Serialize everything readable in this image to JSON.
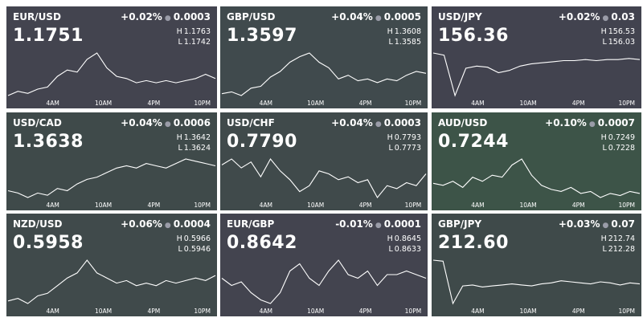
{
  "time_labels": [
    "4AM",
    "10AM",
    "4PM",
    "10PM"
  ],
  "high_label": "H",
  "low_label": "L",
  "tiles": [
    {
      "pair": "EUR/USD",
      "price": "1.1751",
      "change_pct": "+0.02%",
      "change": "0.0003",
      "high": "1.1763",
      "low": "1.1742",
      "color": "#43444f",
      "values": [
        1.1743,
        1.1745,
        1.1744,
        1.1746,
        1.1747,
        1.1752,
        1.1755,
        1.1754,
        1.176,
        1.1763,
        1.1756,
        1.1752,
        1.1751,
        1.1749,
        1.175,
        1.1749,
        1.175,
        1.1749,
        1.175,
        1.1751,
        1.1753,
        1.1751
      ]
    },
    {
      "pair": "GBP/USD",
      "price": "1.3597",
      "change_pct": "+0.04%",
      "change": "0.0005",
      "high": "1.3608",
      "low": "1.3585",
      "color": "#404a4d",
      "values": [
        1.3586,
        1.3587,
        1.3585,
        1.3589,
        1.359,
        1.3595,
        1.3598,
        1.3603,
        1.3606,
        1.3608,
        1.3603,
        1.36,
        1.3594,
        1.3596,
        1.3593,
        1.3594,
        1.3592,
        1.3594,
        1.3593,
        1.3596,
        1.3598,
        1.3597
      ]
    },
    {
      "pair": "USD/JPY",
      "price": "156.36",
      "change_pct": "+0.02%",
      "change": "0.03",
      "high": "156.53",
      "low": "156.03",
      "color": "#42434f",
      "values": [
        156.42,
        156.4,
        156.03,
        156.28,
        156.3,
        156.29,
        156.24,
        156.26,
        156.3,
        156.32,
        156.33,
        156.34,
        156.35,
        156.35,
        156.36,
        156.35,
        156.36,
        156.36,
        156.37,
        156.36
      ]
    },
    {
      "pair": "USD/CAD",
      "price": "1.3638",
      "change_pct": "+0.04%",
      "change": "0.0006",
      "high": "1.3642",
      "low": "1.3624",
      "color": "#3f4a4a",
      "values": [
        1.3627,
        1.3626,
        1.3624,
        1.3626,
        1.3625,
        1.3628,
        1.3627,
        1.363,
        1.3632,
        1.3633,
        1.3635,
        1.3637,
        1.3638,
        1.3637,
        1.3639,
        1.3638,
        1.3637,
        1.3639,
        1.3641,
        1.364,
        1.3639,
        1.3638
      ]
    },
    {
      "pair": "USD/CHF",
      "price": "0.7790",
      "change_pct": "+0.04%",
      "change": "0.0003",
      "high": "0.7793",
      "low": "0.7773",
      "color": "#404a4b",
      "values": [
        0.7785,
        0.7787,
        0.7784,
        0.7786,
        0.7781,
        0.7787,
        0.7783,
        0.778,
        0.7776,
        0.7778,
        0.7783,
        0.7782,
        0.778,
        0.7781,
        0.7779,
        0.778,
        0.7774,
        0.7778,
        0.7777,
        0.7779,
        0.7778,
        0.7782
      ]
    },
    {
      "pair": "AUD/USD",
      "price": "0.7244",
      "change_pct": "+0.10%",
      "change": "0.0007",
      "high": "0.7249",
      "low": "0.7228",
      "color": "#3d5448",
      "values": [
        0.7237,
        0.7236,
        0.7238,
        0.7235,
        0.724,
        0.7238,
        0.7241,
        0.724,
        0.7246,
        0.7249,
        0.7241,
        0.7236,
        0.7234,
        0.7233,
        0.7235,
        0.7232,
        0.7233,
        0.723,
        0.7232,
        0.7231,
        0.7233,
        0.7232
      ]
    },
    {
      "pair": "NZD/USD",
      "price": "0.5958",
      "change_pct": "+0.06%",
      "change": "0.0004",
      "high": "0.5966",
      "low": "0.5946",
      "color": "#404a4b",
      "values": [
        0.5947,
        0.5948,
        0.5946,
        0.5949,
        0.595,
        0.5953,
        0.5956,
        0.5958,
        0.5963,
        0.5958,
        0.5956,
        0.5954,
        0.5955,
        0.5953,
        0.5954,
        0.5953,
        0.5955,
        0.5954,
        0.5955,
        0.5956,
        0.5955,
        0.5957
      ]
    },
    {
      "pair": "EUR/GBP",
      "price": "0.8642",
      "change_pct": "-0.01%",
      "change": "0.0001",
      "high": "0.8645",
      "low": "0.8633",
      "color": "#43444f",
      "values": [
        0.864,
        0.8638,
        0.8639,
        0.8636,
        0.8634,
        0.8633,
        0.8636,
        0.8642,
        0.8644,
        0.864,
        0.8638,
        0.8642,
        0.8645,
        0.8641,
        0.864,
        0.8642,
        0.8638,
        0.8641,
        0.8641,
        0.8642,
        0.8641,
        0.864
      ]
    },
    {
      "pair": "GBP/JPY",
      "price": "212.60",
      "change_pct": "+0.03%",
      "change": "0.07",
      "high": "212.74",
      "low": "212.28",
      "color": "#3f4a4a",
      "values": [
        212.7,
        212.69,
        212.28,
        212.45,
        212.46,
        212.44,
        212.45,
        212.46,
        212.47,
        212.46,
        212.45,
        212.47,
        212.48,
        212.5,
        212.49,
        212.48,
        212.47,
        212.49,
        212.48,
        212.46,
        212.48,
        212.47
      ]
    }
  ]
}
